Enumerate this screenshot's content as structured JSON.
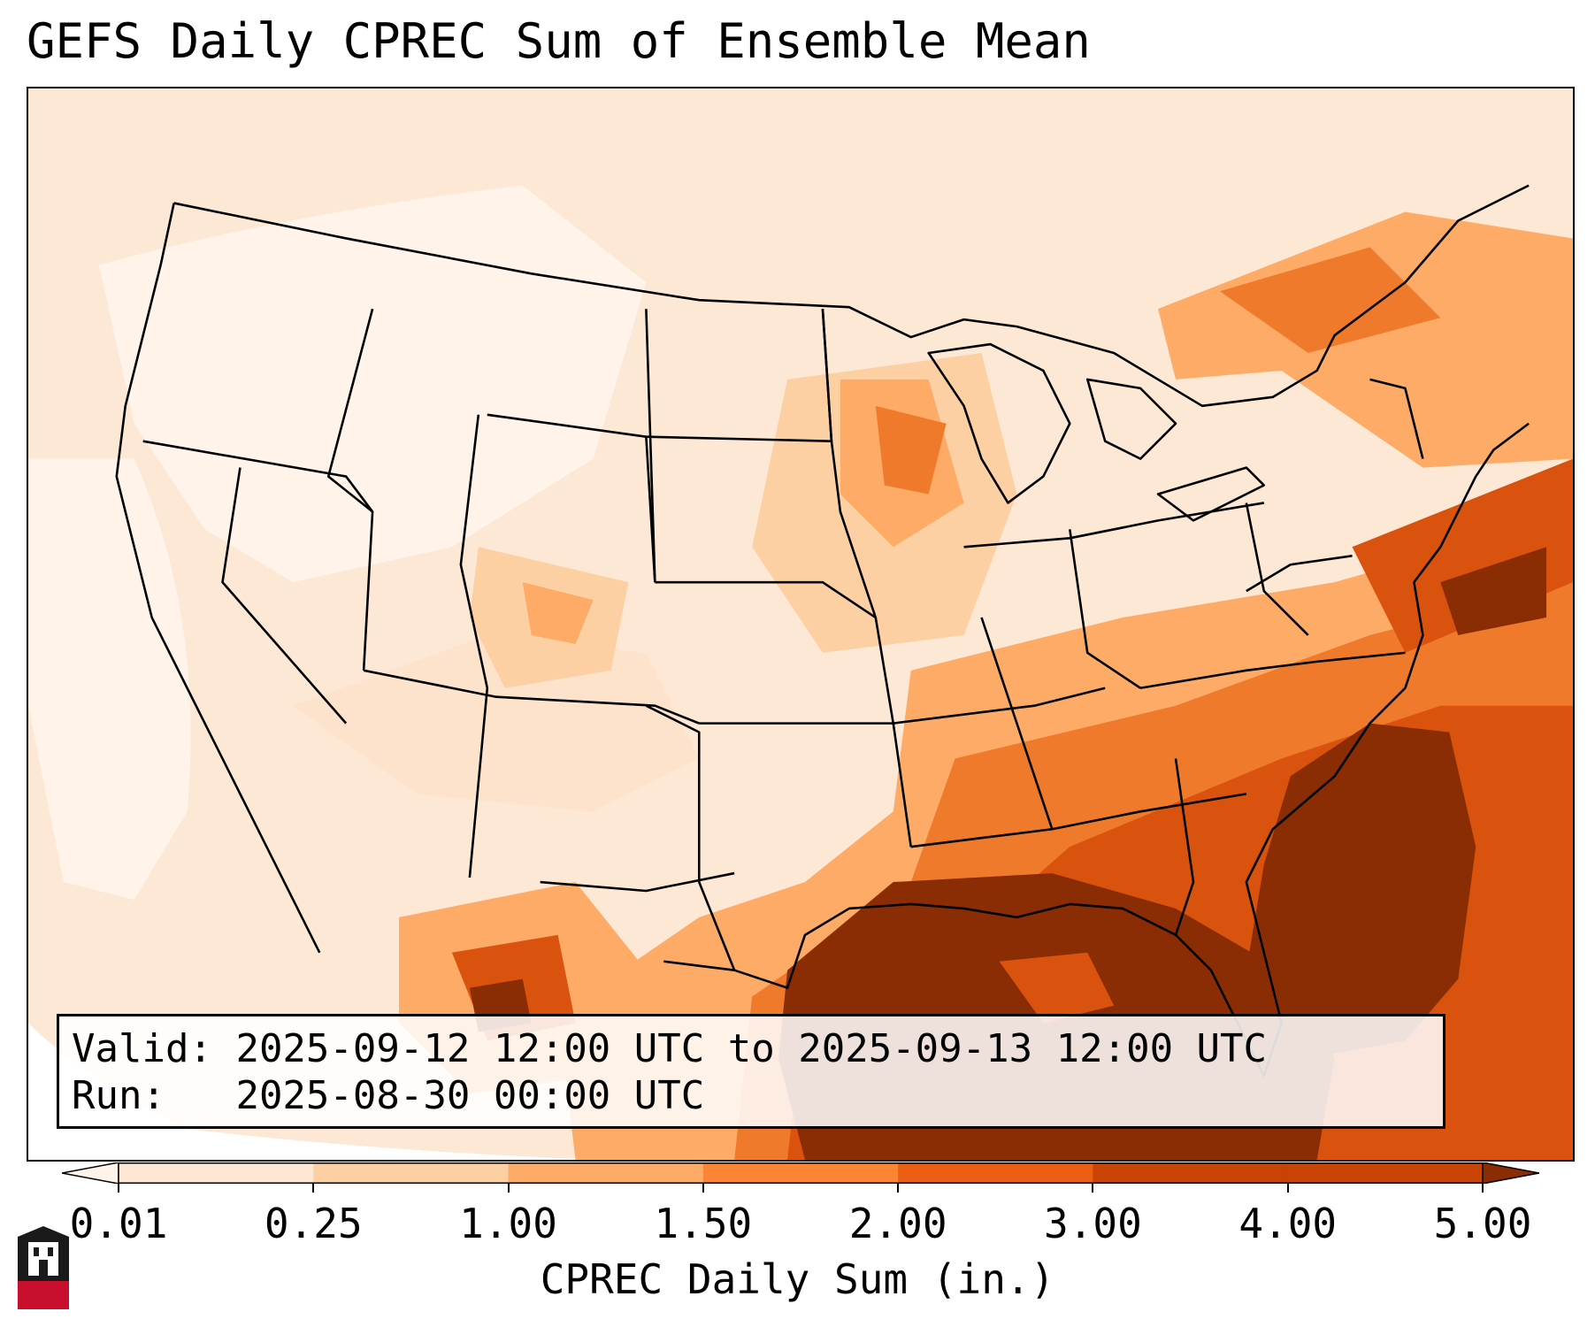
{
  "title": "GEFS Daily CPREC Sum of Ensemble Mean",
  "info": {
    "valid_label": "Valid:",
    "valid_value": "2025-09-12 12:00 UTC to 2025-09-13 12:00 UTC",
    "run_label": "Run:",
    "run_value": "2025-08-30 00:00 UTC"
  },
  "colorbar": {
    "label": "CPREC Daily Sum (in.)",
    "ticks": [
      "0.01",
      "0.25",
      "1.00",
      "1.50",
      "2.00",
      "3.00",
      "4.00",
      "5.00"
    ],
    "colors": [
      "#fff3ea",
      "#fee8d5",
      "#fdd0a4",
      "#fdab67",
      "#fb8535",
      "#ec5e14",
      "#c84304",
      "#8a2c04"
    ],
    "extend": "both"
  },
  "map": {
    "projection": "lambert-conformal",
    "region": "CONUS",
    "field_colors": {
      "lightest": "#fff3ea",
      "light": "#fde3cc",
      "light_mid": "#fdd0a4",
      "mid": "#fdab67",
      "strong": "#f07a2c",
      "heavy": "#d9530e",
      "darkest": "#8a2c04"
    },
    "boundary_color": "#000000"
  },
  "logo": {
    "name": "NIU",
    "colors": {
      "red": "#c8102e",
      "black": "#1a1a1a",
      "white": "#ffffff"
    }
  }
}
